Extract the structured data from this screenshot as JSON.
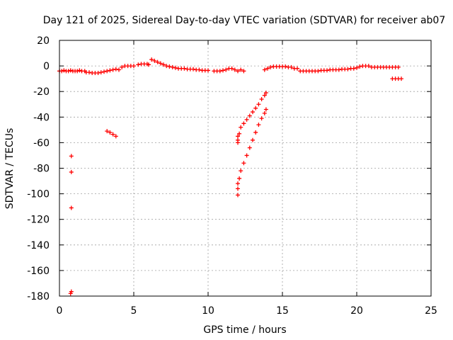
{
  "chart_data": {
    "type": "scatter",
    "title": "Day 121 of 2025, Sidereal Day-to-day VTEC variation (SDTVAR) for receiver ab07",
    "xlabel": "GPS time / hours",
    "ylabel": "SDTVAR / TECUs",
    "xlim": [
      0,
      25
    ],
    "ylim": [
      -180,
      20
    ],
    "xticks": [
      0,
      5,
      10,
      15,
      20,
      25
    ],
    "yticks": [
      20,
      0,
      -20,
      -40,
      -60,
      -80,
      -100,
      -120,
      -140,
      -160,
      -180
    ],
    "grid": true,
    "marker": "plus",
    "color": "#ff0000",
    "series": [
      {
        "name": "SDTVAR",
        "points": [
          [
            0.0,
            -4
          ],
          [
            0.15,
            -4
          ],
          [
            0.3,
            -3.5
          ],
          [
            0.45,
            -4
          ],
          [
            0.6,
            -4
          ],
          [
            0.75,
            -3.5
          ],
          [
            0.9,
            -4
          ],
          [
            1.05,
            -4
          ],
          [
            1.2,
            -4
          ],
          [
            1.35,
            -3.5
          ],
          [
            1.5,
            -4
          ],
          [
            1.7,
            -4
          ],
          [
            1.8,
            -5
          ],
          [
            2.0,
            -5
          ],
          [
            2.2,
            -5.5
          ],
          [
            2.4,
            -5.5
          ],
          [
            2.6,
            -5.5
          ],
          [
            2.8,
            -5
          ],
          [
            3.0,
            -4.5
          ],
          [
            3.2,
            -4
          ],
          [
            3.4,
            -3.5
          ],
          [
            3.6,
            -3
          ],
          [
            3.8,
            -2.5
          ],
          [
            4.0,
            -3
          ],
          [
            4.2,
            -1
          ],
          [
            4.4,
            0
          ],
          [
            4.6,
            0
          ],
          [
            4.8,
            0
          ],
          [
            5.0,
            0
          ],
          [
            5.3,
            1
          ],
          [
            5.5,
            1.5
          ],
          [
            5.7,
            1.5
          ],
          [
            5.9,
            1.5
          ],
          [
            6.0,
            1
          ],
          [
            6.2,
            5
          ],
          [
            6.4,
            4
          ],
          [
            6.6,
            3
          ],
          [
            6.8,
            2
          ],
          [
            7.0,
            1
          ],
          [
            7.2,
            0
          ],
          [
            7.4,
            -0.5
          ],
          [
            7.6,
            -1
          ],
          [
            7.8,
            -1.5
          ],
          [
            8.0,
            -2
          ],
          [
            8.2,
            -2
          ],
          [
            8.4,
            -2
          ],
          [
            8.6,
            -2.5
          ],
          [
            8.8,
            -2.5
          ],
          [
            9.0,
            -2.5
          ],
          [
            9.2,
            -3
          ],
          [
            9.4,
            -3
          ],
          [
            9.6,
            -3.5
          ],
          [
            9.8,
            -3.5
          ],
          [
            10.0,
            -3.5
          ],
          [
            10.4,
            -4
          ],
          [
            10.6,
            -4
          ],
          [
            10.8,
            -4
          ],
          [
            11.0,
            -3.5
          ],
          [
            11.2,
            -3
          ],
          [
            11.4,
            -2
          ],
          [
            11.6,
            -2
          ],
          [
            11.8,
            -3
          ],
          [
            12.0,
            -4
          ],
          [
            12.2,
            -3
          ],
          [
            12.4,
            -4
          ],
          [
            13.8,
            -3
          ],
          [
            14.0,
            -2
          ],
          [
            14.2,
            -1
          ],
          [
            14.4,
            -0.5
          ],
          [
            14.6,
            -0.5
          ],
          [
            14.8,
            -0.5
          ],
          [
            15.0,
            -0.5
          ],
          [
            15.2,
            -0.5
          ],
          [
            15.4,
            -1
          ],
          [
            15.6,
            -1
          ],
          [
            15.8,
            -2
          ],
          [
            16.0,
            -2
          ],
          [
            16.2,
            -4
          ],
          [
            16.4,
            -4
          ],
          [
            16.6,
            -4
          ],
          [
            16.8,
            -4
          ],
          [
            17.0,
            -4
          ],
          [
            17.2,
            -4
          ],
          [
            17.4,
            -4
          ],
          [
            17.6,
            -3.5
          ],
          [
            17.8,
            -3.5
          ],
          [
            18.0,
            -3.5
          ],
          [
            18.2,
            -3
          ],
          [
            18.4,
            -3
          ],
          [
            18.6,
            -3
          ],
          [
            18.8,
            -3
          ],
          [
            19.0,
            -2.5
          ],
          [
            19.2,
            -2.5
          ],
          [
            19.4,
            -2.5
          ],
          [
            19.6,
            -2
          ],
          [
            19.8,
            -2
          ],
          [
            20.0,
            -1.5
          ],
          [
            20.2,
            -0.5
          ],
          [
            20.4,
            0
          ],
          [
            20.6,
            0
          ],
          [
            20.8,
            0
          ],
          [
            21.0,
            -1
          ],
          [
            21.2,
            -1
          ],
          [
            21.4,
            -1
          ],
          [
            21.6,
            -1
          ],
          [
            21.8,
            -1
          ],
          [
            22.0,
            -1
          ],
          [
            22.2,
            -1
          ],
          [
            22.4,
            -1
          ],
          [
            22.6,
            -1
          ],
          [
            22.8,
            -1
          ],
          [
            22.4,
            -10
          ],
          [
            22.6,
            -10
          ],
          [
            22.8,
            -10
          ],
          [
            23.0,
            -10
          ],
          [
            0.8,
            -70.5
          ],
          [
            0.8,
            -83
          ],
          [
            0.8,
            -111
          ],
          [
            0.8,
            -176.5
          ],
          [
            0.75,
            -178
          ],
          [
            3.2,
            -51
          ],
          [
            3.4,
            -52
          ],
          [
            3.6,
            -53.5
          ],
          [
            3.8,
            -55
          ],
          [
            12.0,
            -55
          ],
          [
            12.0,
            -58
          ],
          [
            12.0,
            -60
          ],
          [
            12.1,
            -53
          ],
          [
            12.2,
            -48
          ],
          [
            12.4,
            -45
          ],
          [
            12.6,
            -42
          ],
          [
            12.8,
            -39
          ],
          [
            13.0,
            -36
          ],
          [
            13.2,
            -33
          ],
          [
            13.4,
            -30
          ],
          [
            13.6,
            -26
          ],
          [
            13.8,
            -23
          ],
          [
            13.9,
            -21
          ],
          [
            12.0,
            -101
          ],
          [
            12.0,
            -96
          ],
          [
            12.0,
            -92
          ],
          [
            12.1,
            -88
          ],
          [
            12.2,
            -82
          ],
          [
            12.4,
            -76
          ],
          [
            12.6,
            -70
          ],
          [
            12.8,
            -64
          ],
          [
            13.0,
            -58
          ],
          [
            13.2,
            -52
          ],
          [
            13.4,
            -46
          ],
          [
            13.6,
            -41
          ],
          [
            13.8,
            -37
          ],
          [
            13.9,
            -34
          ]
        ]
      }
    ]
  }
}
